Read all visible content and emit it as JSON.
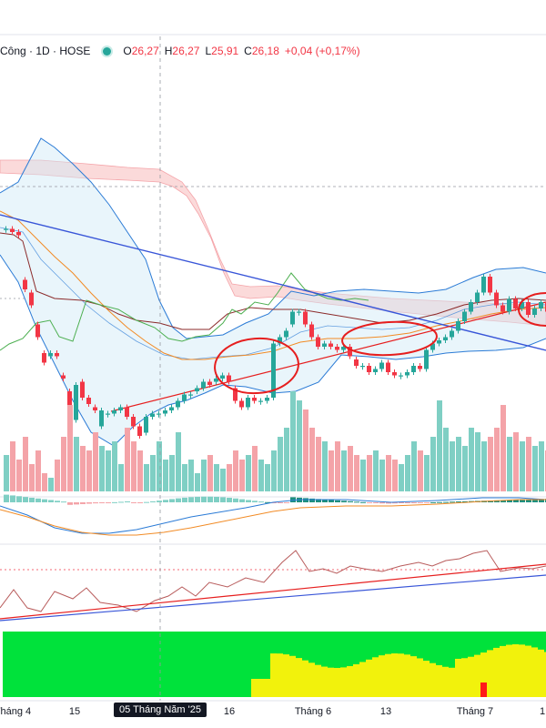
{
  "legend": {
    "symbol": "Công · 1D · HOSE",
    "open_label": "O",
    "open_value": "26,27",
    "high_label": "H",
    "high_value": "26,27",
    "low_label": "L",
    "low_value": "25,91",
    "close_label": "C",
    "close_value": "26,18",
    "change": "+0,04 (+0,17%)"
  },
  "x_axis": {
    "labels": [
      "Tháng 4",
      "15",
      "16",
      "Tháng 6",
      "13",
      "Tháng 7",
      "1"
    ],
    "crosshair_label": "05 Tháng Năm '25"
  },
  "colors": {
    "up": "#26a69a",
    "down": "#f23645",
    "volume_up": "#7fcfc4",
    "volume_down": "#f4a3a8",
    "trendline_blue": "#3855d8",
    "annotation_red": "#e61e1e",
    "bollinger": "#2b7bd6",
    "cloud_red": "#f7b6b6",
    "cloud_green": "#cfe9f7",
    "ma_orange": "#f28b25",
    "ma_brown": "#8b2a2a",
    "lagging_green": "#4caf50",
    "heat_green": "#00e23b",
    "heat_yellow": "#f2f20c",
    "heat_red": "#ff1a1a"
  },
  "chart_data": {
    "type": "candlestick",
    "candles": [
      {
        "o": 22.6,
        "c": 22.6
      },
      {
        "o": 22.6,
        "c": 22.5
      },
      {
        "o": 22.5,
        "c": 22.4
      },
      {
        "o": 21.0,
        "c": 20.7
      },
      {
        "o": 20.6,
        "c": 20.2
      },
      {
        "o": 19.6,
        "c": 19.2
      },
      {
        "o": 18.7,
        "c": 18.4
      },
      {
        "o": 18.6,
        "c": 18.7
      },
      {
        "o": 18.7,
        "c": 18.6
      },
      {
        "o": 18.0,
        "c": 17.9
      },
      {
        "o": 17.5,
        "c": 16.6
      },
      {
        "o": 16.6,
        "c": 17.7
      },
      {
        "o": 17.8,
        "c": 17.3
      },
      {
        "o": 17.3,
        "c": 17.1
      },
      {
        "o": 17.0,
        "c": 16.9
      },
      {
        "o": 16.4,
        "c": 16.9
      },
      {
        "o": 16.8,
        "c": 16.8
      },
      {
        "o": 16.8,
        "c": 16.9
      },
      {
        "o": 16.9,
        "c": 17.0
      },
      {
        "o": 17.0,
        "c": 16.7
      },
      {
        "o": 16.7,
        "c": 16.4
      },
      {
        "o": 16.4,
        "c": 16.1
      },
      {
        "o": 16.2,
        "c": 16.7
      },
      {
        "o": 16.7,
        "c": 16.8
      },
      {
        "o": 16.8,
        "c": 16.8
      },
      {
        "o": 16.8,
        "c": 16.9
      },
      {
        "o": 16.9,
        "c": 17.0
      },
      {
        "o": 17.0,
        "c": 17.2
      },
      {
        "o": 17.2,
        "c": 17.4
      },
      {
        "o": 17.4,
        "c": 17.4
      },
      {
        "o": 17.5,
        "c": 17.6
      },
      {
        "o": 17.6,
        "c": 17.8
      },
      {
        "o": 17.8,
        "c": 17.7
      },
      {
        "o": 17.8,
        "c": 17.9
      },
      {
        "o": 17.9,
        "c": 18.0
      },
      {
        "o": 18.0,
        "c": 17.8
      },
      {
        "o": 17.6,
        "c": 17.2
      },
      {
        "o": 17.2,
        "c": 17.0
      },
      {
        "o": 17.0,
        "c": 17.3
      },
      {
        "o": 17.3,
        "c": 17.2
      },
      {
        "o": 17.2,
        "c": 17.2
      },
      {
        "o": 17.2,
        "c": 17.3
      },
      {
        "o": 17.3,
        "c": 19.0
      },
      {
        "o": 19.0,
        "c": 19.2
      },
      {
        "o": 19.2,
        "c": 19.4
      },
      {
        "o": 19.6,
        "c": 20.0
      },
      {
        "o": 20.0,
        "c": 20.0
      },
      {
        "o": 20.0,
        "c": 19.6
      },
      {
        "o": 19.6,
        "c": 19.2
      },
      {
        "o": 19.2,
        "c": 18.9
      },
      {
        "o": 18.9,
        "c": 19.0
      },
      {
        "o": 19.0,
        "c": 18.9
      },
      {
        "o": 18.9,
        "c": 18.8
      },
      {
        "o": 18.8,
        "c": 18.9
      },
      {
        "o": 18.9,
        "c": 18.6
      },
      {
        "o": 18.5,
        "c": 18.3
      },
      {
        "o": 18.3,
        "c": 18.3
      },
      {
        "o": 18.3,
        "c": 18.1
      },
      {
        "o": 18.1,
        "c": 18.2
      },
      {
        "o": 18.2,
        "c": 18.4
      },
      {
        "o": 18.4,
        "c": 18.1
      },
      {
        "o": 18.1,
        "c": 18.0
      },
      {
        "o": 18.0,
        "c": 18.0
      },
      {
        "o": 18.0,
        "c": 18.1
      },
      {
        "o": 18.1,
        "c": 18.3
      },
      {
        "o": 18.3,
        "c": 18.2
      },
      {
        "o": 18.2,
        "c": 18.8
      },
      {
        "o": 18.8,
        "c": 19.0
      },
      {
        "o": 19.0,
        "c": 19.1
      },
      {
        "o": 19.1,
        "c": 19.2
      },
      {
        "o": 19.2,
        "c": 19.4
      },
      {
        "o": 19.4,
        "c": 19.7
      },
      {
        "o": 19.7,
        "c": 20.0
      },
      {
        "o": 20.0,
        "c": 20.3
      },
      {
        "o": 20.3,
        "c": 20.6
      },
      {
        "o": 20.6,
        "c": 21.1
      },
      {
        "o": 21.1,
        "c": 20.6
      },
      {
        "o": 20.6,
        "c": 20.2
      },
      {
        "o": 20.2,
        "c": 20.0
      },
      {
        "o": 20.0,
        "c": 20.4
      },
      {
        "o": 20.4,
        "c": 20.1
      },
      {
        "o": 20.1,
        "c": 20.3
      },
      {
        "o": 20.3,
        "c": 19.9
      },
      {
        "o": 19.9,
        "c": 20.1
      },
      {
        "o": 20.1,
        "c": 20.3
      },
      {
        "o": 20.3,
        "c": 20.0
      }
    ],
    "volumes": [
      40,
      55,
      35,
      60,
      30,
      45,
      20,
      15,
      35,
      60,
      95,
      60,
      50,
      45,
      65,
      50,
      45,
      55,
      30,
      70,
      55,
      45,
      30,
      40,
      55,
      35,
      40,
      65,
      30,
      35,
      20,
      35,
      40,
      30,
      25,
      30,
      45,
      35,
      40,
      50,
      35,
      30,
      45,
      60,
      70,
      110,
      100,
      90,
      70,
      60,
      55,
      45,
      55,
      45,
      50,
      40,
      35,
      40,
      45,
      35,
      40,
      35,
      30,
      40,
      55,
      45,
      40,
      60,
      100,
      70,
      55,
      60,
      50,
      70,
      65,
      55,
      60,
      70,
      95,
      60,
      65,
      55,
      60,
      50,
      55,
      45
    ]
  }
}
